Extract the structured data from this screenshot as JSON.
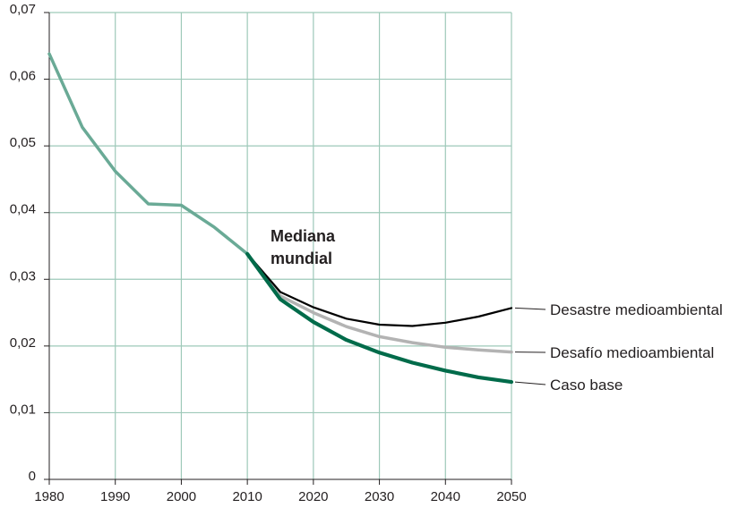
{
  "chart_data": {
    "type": "line",
    "title": "",
    "xlabel": "",
    "ylabel": "",
    "xlim": [
      1980,
      2050
    ],
    "ylim": [
      0,
      0.07
    ],
    "x_ticks": [
      1980,
      1990,
      2000,
      2010,
      2020,
      2030,
      2040,
      2050
    ],
    "x_tick_labels": [
      "1980",
      "1990",
      "2000",
      "2010",
      "2020",
      "2030",
      "2040",
      "2050"
    ],
    "y_ticks": [
      0,
      0.01,
      0.02,
      0.03,
      0.04,
      0.05,
      0.06,
      0.07
    ],
    "y_tick_labels": [
      "0",
      "0,01",
      "0,02",
      "0,03",
      "0,04",
      "0,05",
      "0,06",
      "0,07"
    ],
    "grid": true,
    "annotation": {
      "line1": "Mediana",
      "line2": "mundial"
    },
    "series": [
      {
        "key": "historical",
        "color": "#6aaa96",
        "x": [
          1980,
          1985,
          1990,
          1995,
          2000,
          2005,
          2010
        ],
        "values": [
          0.0638,
          0.0528,
          0.0462,
          0.0413,
          0.0411,
          0.0378,
          0.0338
        ]
      },
      {
        "key": "desastre",
        "name": "Desastre medioambiental",
        "color": "#000000",
        "x": [
          2010,
          2015,
          2020,
          2025,
          2030,
          2035,
          2040,
          2045,
          2050
        ],
        "values": [
          0.0338,
          0.0281,
          0.0258,
          0.0241,
          0.0232,
          0.023,
          0.0235,
          0.0244,
          0.0257
        ]
      },
      {
        "key": "desafio",
        "name": "Desafío medioambiental",
        "color": "#b3b3b3",
        "x": [
          2010,
          2015,
          2020,
          2025,
          2030,
          2035,
          2040,
          2045,
          2050
        ],
        "values": [
          0.0338,
          0.0275,
          0.025,
          0.0229,
          0.0214,
          0.0205,
          0.0198,
          0.0194,
          0.0191
        ]
      },
      {
        "key": "caso_base",
        "name": "Caso base",
        "color": "#006b4a",
        "x": [
          2010,
          2015,
          2020,
          2025,
          2030,
          2035,
          2040,
          2045,
          2050
        ],
        "values": [
          0.0338,
          0.027,
          0.0236,
          0.0209,
          0.019,
          0.0175,
          0.0163,
          0.0153,
          0.0146
        ]
      }
    ]
  }
}
